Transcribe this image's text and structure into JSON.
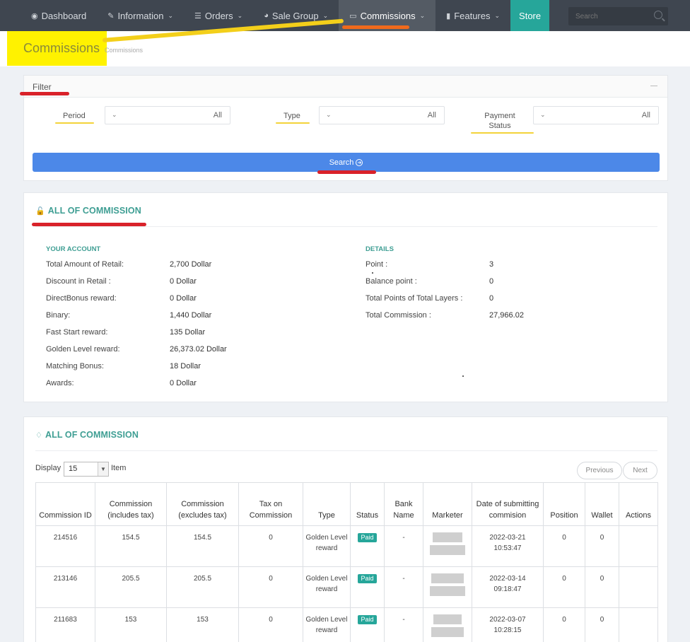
{
  "nav": {
    "items": [
      {
        "label": "Dashboard",
        "icon": "dashboard-icon",
        "caret": false
      },
      {
        "label": "Information",
        "icon": "edit-icon",
        "caret": true
      },
      {
        "label": "Orders",
        "icon": "list-icon",
        "caret": true
      },
      {
        "label": "Sale Group",
        "icon": "pie-chart-icon",
        "caret": true
      },
      {
        "label": "Commissions",
        "icon": "laptop-icon",
        "caret": true,
        "active": true
      },
      {
        "label": "Features",
        "icon": "folder-icon",
        "caret": true
      },
      {
        "label": "Store",
        "icon": "",
        "caret": false,
        "store": true
      }
    ],
    "search_placeholder": "Search"
  },
  "header": {
    "title": "Commissions",
    "breadcrumb": "Commissions"
  },
  "filter": {
    "title": "Filter",
    "period_label": "Period",
    "period_value": "All",
    "type_label": "Type",
    "type_value": "All",
    "payment_label_1": "Payment",
    "payment_label_2": "Status",
    "payment_value": "All",
    "search_label": "Search"
  },
  "summary": {
    "title": "ALL OF COMMISSION",
    "account_heading": "YOUR ACCOUNT",
    "account": [
      {
        "label": "Total Amount of Retail:",
        "value": "2,700 Dollar"
      },
      {
        "label": "Discount in Retail :",
        "value": "0 Dollar"
      },
      {
        "label": "DirectBonus reward:",
        "value": "0 Dollar"
      },
      {
        "label": "Binary:",
        "value": "1,440 Dollar"
      },
      {
        "label": "Fast Start reward:",
        "value": "135 Dollar"
      },
      {
        "label": "Golden Level reward:",
        "value": "26,373.02 Dollar"
      },
      {
        "label": "Matching Bonus:",
        "value": "18 Dollar"
      },
      {
        "label": "Awards:",
        "value": "0 Dollar"
      }
    ],
    "details_heading": "DETAILS",
    "details": [
      {
        "label": "Point :",
        "value": "3"
      },
      {
        "label": "Balance point :",
        "value": "0"
      },
      {
        "label": "Total Points of Total Layers :",
        "value": "0"
      },
      {
        "label": "Total Commission :",
        "value": "27,966.02"
      }
    ]
  },
  "table_section": {
    "title": "ALL OF COMMISSION",
    "display_label": "Display",
    "display_value": "15",
    "item_label": "Item",
    "prev_label": "Previous",
    "next_label": "Next",
    "columns": [
      "Commission ID",
      "Commission (includes tax)",
      "Commission (excludes tax)",
      "Tax on Commission",
      "Type",
      "Status",
      "Bank Name",
      "Marketer",
      "Date of submitting commision",
      "Position",
      "Wallet",
      "Actions"
    ],
    "rows": [
      {
        "id": "214516",
        "inc": "154.5",
        "exc": "154.5",
        "tax": "0",
        "type": "Golden Level reward",
        "status": "Paid",
        "bank": "-",
        "date": "2022-03-21",
        "time": "10:53:47",
        "position": "0",
        "wallet": "0"
      },
      {
        "id": "213146",
        "inc": "205.5",
        "exc": "205.5",
        "tax": "0",
        "type": "Golden Level reward",
        "status": "Paid",
        "bank": "-",
        "date": "2022-03-14",
        "time": "09:18:47",
        "position": "0",
        "wallet": "0"
      },
      {
        "id": "211683",
        "inc": "153",
        "exc": "153",
        "tax": "0",
        "type": "Golden Level reward",
        "status": "Paid",
        "bank": "-",
        "date": "2022-03-07",
        "time": "10:28:15",
        "position": "0",
        "wallet": "0"
      }
    ]
  },
  "colors": {
    "nav_bg": "#3f4650",
    "accent": "#3e9e93",
    "store": "#26a69a",
    "button": "#4c88e8",
    "highlight_yellow": "#fff200",
    "mark_red": "#d9222a",
    "mark_orange": "#f06a1c"
  }
}
